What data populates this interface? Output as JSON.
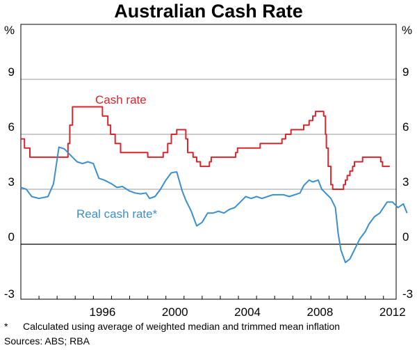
{
  "chart_data": {
    "type": "line",
    "title": "Australian Cash Rate",
    "unit_left": "%",
    "unit_right": "%",
    "xlim": [
      1992.0,
      2012.7
    ],
    "ylim": [
      -3,
      12
    ],
    "yticks": [
      -3,
      0,
      3,
      6,
      9
    ],
    "xticks": [
      1996,
      2000,
      2004,
      2008,
      2012
    ],
    "grid": true,
    "series": [
      {
        "name": "Cash rate",
        "color": "#d7262d",
        "step": true,
        "points": [
          [
            1992.0,
            5.75
          ],
          [
            1992.2,
            5.25
          ],
          [
            1992.5,
            4.75
          ],
          [
            1993.6,
            4.75
          ],
          [
            1993.65,
            4.75
          ],
          [
            1994.6,
            5.5
          ],
          [
            1994.7,
            6.5
          ],
          [
            1994.85,
            7.5
          ],
          [
            1996.5,
            7.0
          ],
          [
            1996.8,
            6.5
          ],
          [
            1996.95,
            6.0
          ],
          [
            1997.2,
            5.5
          ],
          [
            1997.5,
            5.0
          ],
          [
            1998.9,
            5.0
          ],
          [
            1999.0,
            4.75
          ],
          [
            1999.85,
            5.0
          ],
          [
            2000.1,
            5.5
          ],
          [
            2000.3,
            6.0
          ],
          [
            2000.6,
            6.25
          ],
          [
            2001.1,
            5.75
          ],
          [
            2001.2,
            5.0
          ],
          [
            2001.5,
            4.75
          ],
          [
            2001.7,
            4.5
          ],
          [
            2001.9,
            4.25
          ],
          [
            2002.4,
            4.5
          ],
          [
            2002.5,
            4.75
          ],
          [
            2003.85,
            5.0
          ],
          [
            2003.95,
            5.25
          ],
          [
            2005.2,
            5.5
          ],
          [
            2006.4,
            5.75
          ],
          [
            2006.6,
            6.0
          ],
          [
            2006.9,
            6.25
          ],
          [
            2007.6,
            6.5
          ],
          [
            2007.9,
            6.75
          ],
          [
            2008.1,
            7.0
          ],
          [
            2008.25,
            7.25
          ],
          [
            2008.7,
            7.0
          ],
          [
            2008.8,
            6.0
          ],
          [
            2008.85,
            5.25
          ],
          [
            2008.95,
            4.25
          ],
          [
            2009.1,
            3.25
          ],
          [
            2009.2,
            3.0
          ],
          [
            2009.8,
            3.25
          ],
          [
            2009.9,
            3.5
          ],
          [
            2010.0,
            3.75
          ],
          [
            2010.15,
            4.0
          ],
          [
            2010.3,
            4.25
          ],
          [
            2010.4,
            4.5
          ],
          [
            2010.85,
            4.75
          ],
          [
            2011.85,
            4.5
          ],
          [
            2011.95,
            4.25
          ],
          [
            2012.35,
            4.25
          ]
        ]
      },
      {
        "name": "Real cash rate*",
        "color": "#3a8fcc",
        "step": false,
        "points": [
          [
            1992.0,
            3.1
          ],
          [
            1992.3,
            3.0
          ],
          [
            1992.6,
            2.6
          ],
          [
            1993.0,
            2.5
          ],
          [
            1993.5,
            2.6
          ],
          [
            1993.8,
            3.3
          ],
          [
            1994.1,
            5.3
          ],
          [
            1994.4,
            5.2
          ],
          [
            1994.8,
            4.8
          ],
          [
            1995.1,
            4.5
          ],
          [
            1995.4,
            4.4
          ],
          [
            1995.7,
            4.5
          ],
          [
            1996.0,
            4.4
          ],
          [
            1996.3,
            3.6
          ],
          [
            1996.6,
            3.5
          ],
          [
            1997.0,
            3.3
          ],
          [
            1997.3,
            3.1
          ],
          [
            1997.6,
            3.15
          ],
          [
            1998.0,
            2.9
          ],
          [
            1998.3,
            2.8
          ],
          [
            1998.6,
            2.75
          ],
          [
            1998.9,
            2.8
          ],
          [
            1999.1,
            2.5
          ],
          [
            1999.4,
            2.6
          ],
          [
            1999.7,
            3.0
          ],
          [
            2000.0,
            3.5
          ],
          [
            2000.3,
            3.9
          ],
          [
            2000.6,
            3.95
          ],
          [
            2000.9,
            2.9
          ],
          [
            2001.1,
            2.4
          ],
          [
            2001.4,
            1.8
          ],
          [
            2001.7,
            1.0
          ],
          [
            2002.0,
            1.2
          ],
          [
            2002.3,
            1.7
          ],
          [
            2002.6,
            1.7
          ],
          [
            2002.9,
            1.8
          ],
          [
            2003.2,
            1.7
          ],
          [
            2003.5,
            1.9
          ],
          [
            2003.8,
            2.0
          ],
          [
            2004.1,
            2.3
          ],
          [
            2004.4,
            2.6
          ],
          [
            2004.7,
            2.5
          ],
          [
            2005.0,
            2.6
          ],
          [
            2005.3,
            2.5
          ],
          [
            2005.6,
            2.6
          ],
          [
            2005.9,
            2.7
          ],
          [
            2006.2,
            2.7
          ],
          [
            2006.5,
            2.7
          ],
          [
            2006.8,
            2.6
          ],
          [
            2007.1,
            2.7
          ],
          [
            2007.4,
            2.8
          ],
          [
            2007.6,
            3.2
          ],
          [
            2007.9,
            3.5
          ],
          [
            2008.1,
            3.4
          ],
          [
            2008.4,
            3.5
          ],
          [
            2008.6,
            3.0
          ],
          [
            2008.9,
            2.7
          ],
          [
            2009.1,
            2.5
          ],
          [
            2009.35,
            2.0
          ],
          [
            2009.5,
            0.6
          ],
          [
            2009.65,
            -0.3
          ],
          [
            2009.9,
            -1.0
          ],
          [
            2010.15,
            -0.8
          ],
          [
            2010.4,
            -0.3
          ],
          [
            2010.7,
            0.3
          ],
          [
            2011.0,
            0.7
          ],
          [
            2011.2,
            1.1
          ],
          [
            2011.5,
            1.5
          ],
          [
            2011.8,
            1.7
          ],
          [
            2012.0,
            2.0
          ],
          [
            2012.2,
            2.3
          ],
          [
            2012.5,
            2.3
          ],
          [
            2012.8,
            2.0
          ],
          [
            2013.1,
            2.2
          ],
          [
            2013.3,
            1.7
          ]
        ]
      }
    ],
    "annotations": [
      {
        "text": "Cash rate",
        "series": 0
      },
      {
        "text": "Real cash rate*",
        "series": 1
      }
    ]
  },
  "footnote": {
    "marker": "*",
    "text": "Calculated using average of weighted median and trimmed mean inflation"
  },
  "sources": "Sources: ABS; RBA"
}
